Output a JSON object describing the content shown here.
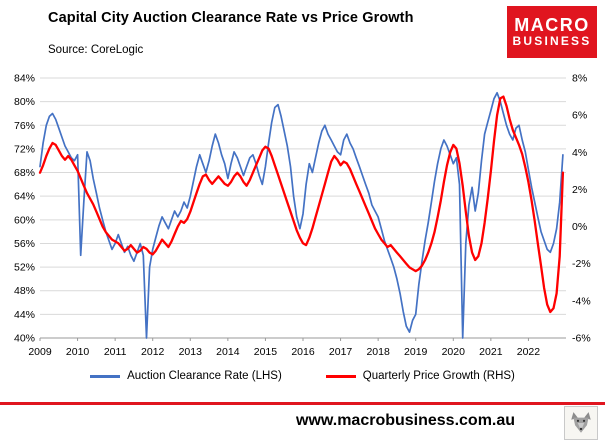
{
  "header": {
    "title": "Capital City Auction Clearance Rate vs Price Growth",
    "source": "Source: CoreLogic",
    "logo_line1": "MACRO",
    "logo_line2": "BUSINESS",
    "brand_color": "#E0151F"
  },
  "legend": [
    {
      "label": "Auction Clearance Rate (LHS)",
      "color": "#4472C4"
    },
    {
      "label": "Quarterly Price Growth (RHS)",
      "color": "#FF0000"
    }
  ],
  "footer": {
    "website": "www.macrobusiness.com.au",
    "logo_icon": "wolf-icon"
  },
  "chart_data": {
    "type": "line",
    "title": "Capital City Auction Clearance Rate vs Price Growth",
    "x_domain": [
      2009,
      2023
    ],
    "x_start_year": 2009,
    "x_tick_labels": [
      "2009",
      "2010",
      "2011",
      "2012",
      "2013",
      "2014",
      "2015",
      "2016",
      "2017",
      "2018",
      "2019",
      "2020",
      "2021",
      "2022"
    ],
    "left_axis": {
      "name": "Auction Clearance Rate (LHS)",
      "min": 40,
      "max": 84,
      "tick_step": 4,
      "tick_labels": [
        "84%",
        "80%",
        "76%",
        "72%",
        "68%",
        "64%",
        "60%",
        "56%",
        "52%",
        "48%",
        "44%",
        "40%"
      ]
    },
    "right_axis": {
      "name": "Quarterly Price Growth (RHS)",
      "min": -6,
      "max": 8,
      "tick_step": 2,
      "tick_labels": [
        "8%",
        "6%",
        "4%",
        "2%",
        "0%",
        "-2%",
        "-4%",
        "-6%"
      ]
    },
    "grid": true,
    "legend_position": "bottom",
    "series": [
      {
        "name": "Auction Clearance Rate (LHS)",
        "axis": "left",
        "color": "#4472C4",
        "frequency": "monthly",
        "values": [
          69,
          73,
          76,
          77.5,
          78,
          77,
          75.5,
          74,
          72.5,
          71.5,
          70.5,
          70,
          71,
          54,
          63,
          71.5,
          70,
          67,
          64.5,
          62,
          60,
          58,
          56.5,
          55,
          56,
          57.5,
          56,
          54.5,
          55.5,
          54,
          53,
          54.5,
          56,
          54,
          40,
          52,
          55,
          57,
          59,
          60.5,
          59.5,
          58.5,
          60,
          61.5,
          60.5,
          61.5,
          63,
          62,
          64,
          66.5,
          69,
          71,
          69.5,
          68,
          70,
          72.5,
          74.5,
          73,
          71,
          69.5,
          67,
          69.5,
          71.5,
          70.5,
          69,
          67.5,
          69,
          70.5,
          71,
          69.5,
          67.5,
          66,
          69,
          73,
          76.5,
          79,
          79.5,
          77.5,
          75,
          72.5,
          69,
          64,
          60.5,
          58.5,
          61,
          66,
          69.5,
          68,
          70.5,
          73,
          75,
          76,
          74.5,
          73.5,
          72.5,
          71.5,
          71,
          73.5,
          74.5,
          73,
          72,
          70.5,
          69,
          67.5,
          66,
          64.5,
          62.5,
          61.5,
          60.5,
          58.5,
          56.5,
          55,
          53.5,
          52,
          50,
          47.5,
          44.5,
          42,
          41,
          43,
          44,
          49,
          53,
          56.5,
          59.5,
          63,
          66.5,
          69.5,
          72,
          73.5,
          72.5,
          71,
          69.5,
          70.5,
          66,
          40,
          56,
          62.5,
          65.5,
          61.5,
          64.5,
          70,
          74.5,
          76.5,
          78.5,
          80.5,
          81.5,
          80,
          78,
          76,
          74.5,
          73.5,
          75.5,
          76,
          73.5,
          71.5,
          68.5,
          65.5,
          63,
          60.5,
          58,
          56.5,
          55,
          54.5,
          56,
          58.5,
          63,
          71
        ]
      },
      {
        "name": "Quarterly Price Growth (RHS)",
        "axis": "right",
        "color": "#FF0000",
        "frequency": "monthly",
        "values": [
          2.9,
          3.3,
          3.8,
          4.2,
          4.5,
          4.4,
          4.1,
          3.8,
          3.6,
          3.8,
          3.6,
          3.3,
          3.0,
          2.6,
          2.2,
          1.8,
          1.5,
          1.2,
          0.8,
          0.4,
          0,
          -0.3,
          -0.5,
          -0.7,
          -0.8,
          -0.9,
          -1.1,
          -1.3,
          -1.2,
          -1.0,
          -1.2,
          -1.4,
          -1.3,
          -1.1,
          -1.2,
          -1.4,
          -1.5,
          -1.3,
          -1.0,
          -0.7,
          -0.9,
          -1.1,
          -0.8,
          -0.4,
          0,
          0.3,
          0.2,
          0.4,
          0.8,
          1.3,
          1.8,
          2.3,
          2.7,
          2.8,
          2.5,
          2.3,
          2.5,
          2.7,
          2.5,
          2.3,
          2.2,
          2.4,
          2.7,
          2.9,
          2.7,
          2.4,
          2.2,
          2.5,
          2.9,
          3.3,
          3.7,
          4.1,
          4.3,
          4.2,
          3.8,
          3.3,
          2.8,
          2.3,
          1.8,
          1.3,
          0.8,
          0.3,
          -0.2,
          -0.6,
          -0.9,
          -1.0,
          -0.6,
          -0.1,
          0.5,
          1.1,
          1.7,
          2.3,
          2.9,
          3.5,
          3.8,
          3.6,
          3.3,
          3.5,
          3.4,
          3.1,
          2.7,
          2.3,
          1.9,
          1.5,
          1.1,
          0.7,
          0.3,
          -0.1,
          -0.4,
          -0.7,
          -0.9,
          -1.1,
          -1.0,
          -1.2,
          -1.4,
          -1.6,
          -1.8,
          -2.0,
          -2.2,
          -2.3,
          -2.4,
          -2.3,
          -2.1,
          -1.8,
          -1.4,
          -0.9,
          -0.3,
          0.5,
          1.4,
          2.4,
          3.3,
          4.0,
          4.4,
          4.2,
          3.4,
          2.2,
          0.8,
          -0.5,
          -1.4,
          -1.8,
          -1.6,
          -0.9,
          0.2,
          1.5,
          3.0,
          4.6,
          6.0,
          6.9,
          7.0,
          6.5,
          5.8,
          5.2,
          4.8,
          4.4,
          3.9,
          3.2,
          2.4,
          1.4,
          0.3,
          -0.9,
          -2.1,
          -3.3,
          -4.2,
          -4.6,
          -4.4,
          -3.6,
          -1.6,
          2.9
        ]
      }
    ]
  }
}
